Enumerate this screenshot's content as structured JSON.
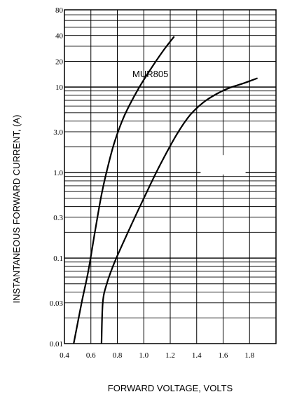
{
  "chart_data": {
    "type": "line",
    "title": "",
    "xlabel": "FORWARD VOLTAGE, VOLTS",
    "ylabel": "INSTANTANEOUS FORWARD CURRENT, (A)",
    "xlim": [
      0.4,
      2.0
    ],
    "ylim": [
      0.01,
      80
    ],
    "yscale": "log",
    "grid": true,
    "x_ticks": [
      {
        "value": 0.4,
        "label": "0.4"
      },
      {
        "value": 0.6,
        "label": "0.6"
      },
      {
        "value": 0.8,
        "label": "0.8"
      },
      {
        "value": 1.0,
        "label": "1.0"
      },
      {
        "value": 1.2,
        "label": "1.2"
      },
      {
        "value": 1.4,
        "label": "1.4"
      },
      {
        "value": 1.6,
        "label": "1.6"
      },
      {
        "value": 1.8,
        "label": "1.8"
      }
    ],
    "y_ticks": [
      {
        "value": 0.01,
        "label": "0.01"
      },
      {
        "value": 0.03,
        "label": "0.03"
      },
      {
        "value": 0.1,
        "label": "0.1"
      },
      {
        "value": 0.3,
        "label": "0.3"
      },
      {
        "value": 1.0,
        "label": "1.0"
      },
      {
        "value": 3.0,
        "label": "3.0"
      },
      {
        "value": 10,
        "label": "10"
      },
      {
        "value": 20,
        "label": "20"
      },
      {
        "value": 40,
        "label": "40"
      },
      {
        "value": 80,
        "label": "80"
      }
    ],
    "series": [
      {
        "name": "MUR805",
        "x": [
          0.47,
          0.53,
          0.58,
          0.63,
          0.68,
          0.73,
          0.78,
          0.85,
          0.95,
          1.05,
          1.15,
          1.23
        ],
        "y": [
          0.01,
          0.03,
          0.07,
          0.2,
          0.55,
          1.2,
          2.3,
          4.5,
          9,
          16,
          27,
          39
        ]
      },
      {
        "name": "",
        "x": [
          0.68,
          0.69,
          0.72,
          0.78,
          0.88,
          1.0,
          1.12,
          1.25,
          1.35,
          1.45,
          1.55,
          1.65,
          1.75,
          1.86
        ],
        "y": [
          0.01,
          0.03,
          0.05,
          0.09,
          0.2,
          0.5,
          1.2,
          2.8,
          4.7,
          6.6,
          8.3,
          9.8,
          11,
          12.7
        ]
      }
    ],
    "annotations": [
      {
        "text": "MUR805",
        "x": 1.05,
        "y": 13
      }
    ]
  }
}
